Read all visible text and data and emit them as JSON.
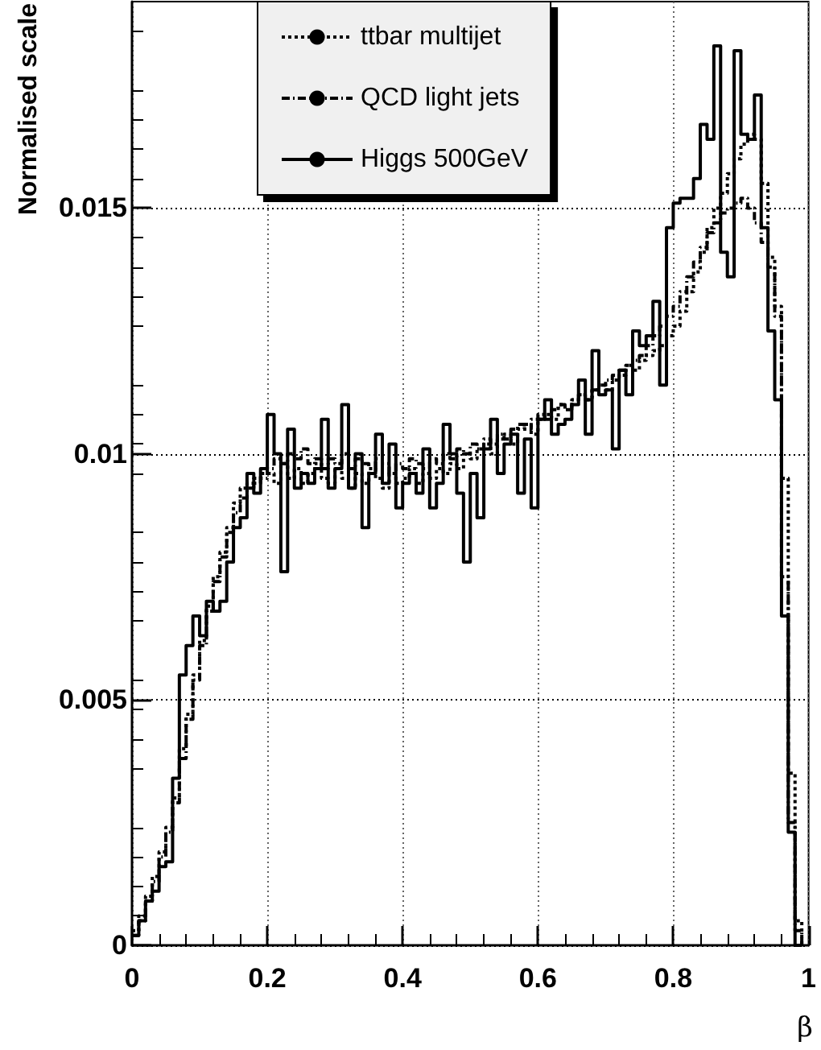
{
  "chart_data": {
    "type": "step",
    "xlabel": "β",
    "ylabel": "Normalised scale",
    "x": [
      0,
      0.01,
      0.02,
      0.03,
      0.04,
      0.05,
      0.06,
      0.07,
      0.08,
      0.09,
      0.1,
      0.11,
      0.12,
      0.13,
      0.14,
      0.15,
      0.16,
      0.17,
      0.18,
      0.19,
      0.2,
      0.21,
      0.22,
      0.23,
      0.24,
      0.25,
      0.26,
      0.27,
      0.28,
      0.29,
      0.3,
      0.31,
      0.32,
      0.33,
      0.34,
      0.35,
      0.36,
      0.37,
      0.38,
      0.39,
      0.4,
      0.41,
      0.42,
      0.43,
      0.44,
      0.45,
      0.46,
      0.47,
      0.48,
      0.49,
      0.5,
      0.51,
      0.52,
      0.53,
      0.54,
      0.55,
      0.56,
      0.57,
      0.58,
      0.59,
      0.6,
      0.61,
      0.62,
      0.63,
      0.64,
      0.65,
      0.66,
      0.67,
      0.68,
      0.69,
      0.7,
      0.71,
      0.72,
      0.73,
      0.74,
      0.75,
      0.76,
      0.77,
      0.78,
      0.79,
      0.8,
      0.81,
      0.82,
      0.83,
      0.84,
      0.85,
      0.86,
      0.87,
      0.88,
      0.89,
      0.9,
      0.91,
      0.92,
      0.93,
      0.94,
      0.95,
      0.96,
      0.97,
      0.98,
      0.99
    ],
    "series": [
      {
        "name": "ttbar multijet",
        "color": "#000000",
        "line_style": "dotted",
        "values": [
          0.0003,
          0.0006,
          0.001,
          0.0014,
          0.0019,
          0.0024,
          0.003,
          0.004,
          0.0047,
          0.0055,
          0.0062,
          0.0069,
          0.0075,
          0.008,
          0.0085,
          0.009,
          0.0093,
          0.0094,
          0.0095,
          0.0096,
          0.0096,
          0.0094,
          0.0098,
          0.0095,
          0.0097,
          0.0094,
          0.0096,
          0.0098,
          0.0095,
          0.0094,
          0.0097,
          0.0095,
          0.0093,
          0.0096,
          0.0094,
          0.0097,
          0.0095,
          0.0093,
          0.0096,
          0.0094,
          0.0095,
          0.0097,
          0.0094,
          0.0096,
          0.0095,
          0.0097,
          0.0096,
          0.0098,
          0.0097,
          0.01,
          0.0099,
          0.0101,
          0.0102,
          0.01,
          0.0103,
          0.0104,
          0.0102,
          0.0105,
          0.0106,
          0.0104,
          0.0107,
          0.0108,
          0.0107,
          0.011,
          0.0109,
          0.0111,
          0.0112,
          0.0111,
          0.0113,
          0.0114,
          0.0113,
          0.0115,
          0.0116,
          0.0118,
          0.0117,
          0.0119,
          0.012,
          0.0121,
          0.0122,
          0.0124,
          0.0126,
          0.0129,
          0.0133,
          0.0137,
          0.0141,
          0.0146,
          0.015,
          0.0153,
          0.0157,
          0.016,
          0.0163,
          0.0165,
          0.0164,
          0.0155,
          0.014,
          0.013,
          0.0095,
          0.0035,
          0.0005,
          0
        ]
      },
      {
        "name": "QCD light jets",
        "color": "#000000",
        "line_style": "dashed",
        "values": [
          0.0002,
          0.0005,
          0.0009,
          0.0013,
          0.0018,
          0.0023,
          0.0029,
          0.0038,
          0.0046,
          0.0054,
          0.0061,
          0.0068,
          0.0074,
          0.0079,
          0.0084,
          0.0088,
          0.0091,
          0.0093,
          0.0094,
          0.0095,
          0.0097,
          0.0099,
          0.0098,
          0.01,
          0.0099,
          0.0101,
          0.0098,
          0.0099,
          0.0097,
          0.0099,
          0.0098,
          0.01,
          0.0097,
          0.0099,
          0.0098,
          0.0097,
          0.0099,
          0.0098,
          0.0096,
          0.0098,
          0.0097,
          0.0099,
          0.0098,
          0.0097,
          0.0099,
          0.0098,
          0.01,
          0.0099,
          0.0101,
          0.01,
          0.0102,
          0.0101,
          0.0103,
          0.0102,
          0.0104,
          0.0103,
          0.0105,
          0.0106,
          0.0105,
          0.0107,
          0.0108,
          0.0107,
          0.0109,
          0.011,
          0.0109,
          0.0111,
          0.0112,
          0.0111,
          0.0113,
          0.0114,
          0.0115,
          0.0116,
          0.0117,
          0.0118,
          0.0119,
          0.012,
          0.0122,
          0.0124,
          0.0126,
          0.0128,
          0.013,
          0.0133,
          0.0136,
          0.0139,
          0.0142,
          0.0145,
          0.0147,
          0.0149,
          0.015,
          0.0151,
          0.0152,
          0.015,
          0.0147,
          0.0143,
          0.0138,
          0.0128,
          0.0075,
          0.0025,
          0.0003,
          0
        ]
      },
      {
        "name": "Higgs 500GeV",
        "color": "#000000",
        "line_style": "solid",
        "values": [
          0.0002,
          0.0005,
          0.0009,
          0.0011,
          0.0016,
          0.0017,
          0.0034,
          0.0055,
          0.0061,
          0.0067,
          0.0063,
          0.007,
          0.0068,
          0.007,
          0.0078,
          0.0085,
          0.0087,
          0.0096,
          0.0092,
          0.0097,
          0.0108,
          0.01,
          0.0076,
          0.0105,
          0.0093,
          0.0096,
          0.0094,
          0.0097,
          0.0107,
          0.0093,
          0.0097,
          0.011,
          0.0093,
          0.01,
          0.0085,
          0.0096,
          0.0104,
          0.0094,
          0.0102,
          0.0089,
          0.0094,
          0.0096,
          0.0092,
          0.0101,
          0.0089,
          0.0094,
          0.0106,
          0.01,
          0.0092,
          0.0078,
          0.0096,
          0.0087,
          0.0101,
          0.0107,
          0.0096,
          0.0102,
          0.0104,
          0.0092,
          0.0103,
          0.0089,
          0.0107,
          0.0111,
          0.0104,
          0.0106,
          0.0107,
          0.011,
          0.0115,
          0.0104,
          0.0121,
          0.0112,
          0.0113,
          0.0101,
          0.0117,
          0.0112,
          0.0125,
          0.0122,
          0.0124,
          0.0131,
          0.0114,
          0.0146,
          0.0151,
          0.0152,
          0.0152,
          0.0156,
          0.0167,
          0.0164,
          0.0183,
          0.0141,
          0.0136,
          0.0182,
          0.0165,
          0.0164,
          0.0173,
          0.0146,
          0.0125,
          0.0111,
          0.0067,
          0.0023,
          0,
          0
        ]
      }
    ],
    "xlim": [
      0,
      1
    ],
    "xticks": [
      0,
      0.2,
      0.4,
      0.6,
      0.8,
      1
    ],
    "ylim": [
      0,
      0.0192
    ],
    "yticks": [
      0,
      0.005,
      0.01,
      0.015
    ],
    "grid": true,
    "legend": "top left",
    "marker": "none"
  }
}
